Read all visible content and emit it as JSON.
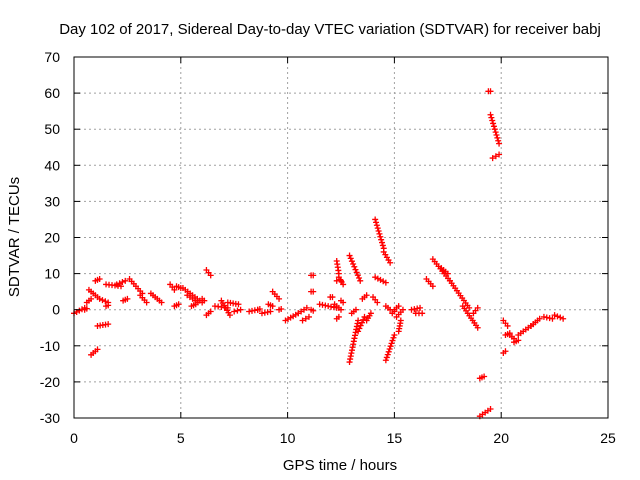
{
  "chart_data": {
    "type": "scatter",
    "title": "Day 102 of 2017, Sidereal Day-to-day VTEC variation (SDTVAR) for receiver babj",
    "xlabel": "GPS time / hours",
    "ylabel": "SDTVAR / TECUs",
    "xlim": [
      0,
      25
    ],
    "ylim": [
      -30,
      70
    ],
    "xticks": [
      0,
      5,
      10,
      15,
      20,
      25
    ],
    "yticks": [
      -30,
      -20,
      -10,
      0,
      10,
      20,
      30,
      40,
      50,
      60,
      70
    ],
    "grid": true,
    "marker": "+",
    "color": "#ff0000",
    "segments": [
      {
        "x0": 0.0,
        "y0": -1.0,
        "x1": 0.5,
        "y1": 0.5
      },
      {
        "x0": 0.5,
        "y0": 0.0,
        "x1": 0.6,
        "y1": 0.3
      },
      {
        "x0": 0.6,
        "y0": 2.0,
        "x1": 0.8,
        "y1": 3.0
      },
      {
        "x0": 0.7,
        "y0": 5.5,
        "x1": 1.1,
        "y1": 3.5
      },
      {
        "x0": 0.8,
        "y0": -12.5,
        "x1": 1.1,
        "y1": -11.0
      },
      {
        "x0": 1.0,
        "y0": 8.0,
        "x1": 1.2,
        "y1": 8.5
      },
      {
        "x0": 1.1,
        "y0": -4.5,
        "x1": 1.6,
        "y1": -4.0
      },
      {
        "x0": 1.2,
        "y0": 3.0,
        "x1": 1.6,
        "y1": 2.0
      },
      {
        "x0": 1.5,
        "y0": 1.0,
        "x1": 1.6,
        "y1": 1.2
      },
      {
        "x0": 1.5,
        "y0": 7.0,
        "x1": 2.2,
        "y1": 6.5
      },
      {
        "x0": 2.0,
        "y0": 7.0,
        "x1": 2.4,
        "y1": 8.0
      },
      {
        "x0": 2.3,
        "y0": 2.5,
        "x1": 2.5,
        "y1": 3.0
      },
      {
        "x0": 2.6,
        "y0": 8.5,
        "x1": 3.2,
        "y1": 4.5
      },
      {
        "x0": 3.1,
        "y0": 4.0,
        "x1": 3.4,
        "y1": 2.0
      },
      {
        "x0": 3.6,
        "y0": 4.5,
        "x1": 4.1,
        "y1": 2.0
      },
      {
        "x0": 4.5,
        "y0": 7.0,
        "x1": 4.7,
        "y1": 5.5
      },
      {
        "x0": 4.7,
        "y0": 1.0,
        "x1": 4.9,
        "y1": 1.5
      },
      {
        "x0": 4.8,
        "y0": 6.5,
        "x1": 5.0,
        "y1": 6.0
      },
      {
        "x0": 5.1,
        "y0": 6.0,
        "x1": 6.0,
        "y1": 2.0
      },
      {
        "x0": 5.3,
        "y0": 4.0,
        "x1": 5.8,
        "y1": 2.0
      },
      {
        "x0": 5.5,
        "y0": 1.0,
        "x1": 5.7,
        "y1": 1.5
      },
      {
        "x0": 6.0,
        "y0": 3.0,
        "x1": 6.1,
        "y1": 2.5
      },
      {
        "x0": 6.2,
        "y0": 11.0,
        "x1": 6.4,
        "y1": 9.5
      },
      {
        "x0": 6.2,
        "y0": -1.5,
        "x1": 6.4,
        "y1": -0.5
      },
      {
        "x0": 6.6,
        "y0": 1.0,
        "x1": 7.2,
        "y1": 0.5
      },
      {
        "x0": 6.9,
        "y0": 2.5,
        "x1": 7.3,
        "y1": -1.5
      },
      {
        "x0": 7.2,
        "y0": 2.0,
        "x1": 7.7,
        "y1": 1.5
      },
      {
        "x0": 7.5,
        "y0": -0.5,
        "x1": 7.8,
        "y1": 0.0
      },
      {
        "x0": 8.2,
        "y0": -0.5,
        "x1": 8.6,
        "y1": 0.0
      },
      {
        "x0": 8.6,
        "y0": 0.0,
        "x1": 8.7,
        "y1": 0.2
      },
      {
        "x0": 8.8,
        "y0": -1.0,
        "x1": 9.2,
        "y1": -0.5
      },
      {
        "x0": 9.1,
        "y0": 1.5,
        "x1": 9.3,
        "y1": 1.0
      },
      {
        "x0": 9.3,
        "y0": 5.0,
        "x1": 9.6,
        "y1": 3.0
      },
      {
        "x0": 9.6,
        "y0": 0.0,
        "x1": 9.7,
        "y1": 0.2
      },
      {
        "x0": 9.9,
        "y0": -3.0,
        "x1": 10.5,
        "y1": -1.0
      },
      {
        "x0": 10.5,
        "y0": -1.0,
        "x1": 10.9,
        "y1": 0.5
      },
      {
        "x0": 10.7,
        "y0": -3.0,
        "x1": 11.0,
        "y1": -2.0
      },
      {
        "x0": 11.1,
        "y0": 9.5,
        "x1": 11.2,
        "y1": 9.5
      },
      {
        "x0": 11.1,
        "y0": 5.0,
        "x1": 11.2,
        "y1": 5.0
      },
      {
        "x0": 11.1,
        "y0": 0.0,
        "x1": 11.2,
        "y1": -0.3
      },
      {
        "x0": 11.5,
        "y0": 1.5,
        "x1": 12.3,
        "y1": 0.5
      },
      {
        "x0": 12.0,
        "y0": 3.5,
        "x1": 12.1,
        "y1": 3.5
      },
      {
        "x0": 12.2,
        "y0": 1.5,
        "x1": 12.5,
        "y1": 0.0
      },
      {
        "x0": 12.3,
        "y0": 13.5,
        "x1": 12.4,
        "y1": 10.0
      },
      {
        "x0": 12.3,
        "y0": 8.0,
        "x1": 12.5,
        "y1": 8.0
      },
      {
        "x0": 12.3,
        "y0": -2.5,
        "x1": 12.4,
        "y1": -2.0
      },
      {
        "x0": 12.4,
        "y0": 9.0,
        "x1": 12.6,
        "y1": 7.0
      },
      {
        "x0": 12.5,
        "y0": 2.5,
        "x1": 12.6,
        "y1": 2.0
      },
      {
        "x0": 12.9,
        "y0": 15.0,
        "x1": 13.4,
        "y1": 8.0
      },
      {
        "x0": 12.9,
        "y0": -14.5,
        "x1": 13.3,
        "y1": -3.0
      },
      {
        "x0": 13.0,
        "y0": -1.0,
        "x1": 13.2,
        "y1": 0.0
      },
      {
        "x0": 13.3,
        "y0": -6.0,
        "x1": 13.6,
        "y1": -2.0
      },
      {
        "x0": 13.5,
        "y0": 3.0,
        "x1": 13.7,
        "y1": 4.0
      },
      {
        "x0": 13.7,
        "y0": -3.0,
        "x1": 13.9,
        "y1": -1.0
      },
      {
        "x0": 14.0,
        "y0": 3.5,
        "x1": 14.2,
        "y1": 2.0
      },
      {
        "x0": 14.1,
        "y0": 25.0,
        "x1": 14.5,
        "y1": 17.0
      },
      {
        "x0": 14.1,
        "y0": 9.0,
        "x1": 14.6,
        "y1": 7.5
      },
      {
        "x0": 14.5,
        "y0": 16.0,
        "x1": 14.8,
        "y1": 13.0
      },
      {
        "x0": 14.6,
        "y0": 1.0,
        "x1": 14.8,
        "y1": 0.0
      },
      {
        "x0": 14.6,
        "y0": -14.0,
        "x1": 15.0,
        "y1": -7.0
      },
      {
        "x0": 14.9,
        "y0": -1.0,
        "x1": 15.0,
        "y1": -0.5
      },
      {
        "x0": 15.0,
        "y0": 0.0,
        "x1": 15.2,
        "y1": 1.0
      },
      {
        "x0": 15.1,
        "y0": -2.0,
        "x1": 15.4,
        "y1": 0.0
      },
      {
        "x0": 15.2,
        "y0": -6.0,
        "x1": 15.3,
        "y1": -3.0
      },
      {
        "x0": 15.8,
        "y0": 0.0,
        "x1": 16.2,
        "y1": 0.5
      },
      {
        "x0": 16.0,
        "y0": -1.0,
        "x1": 16.3,
        "y1": -1.0
      },
      {
        "x0": 16.5,
        "y0": 8.5,
        "x1": 16.8,
        "y1": 6.5
      },
      {
        "x0": 16.8,
        "y0": 14.0,
        "x1": 17.6,
        "y1": 8.0
      },
      {
        "x0": 17.2,
        "y0": 11.5,
        "x1": 17.5,
        "y1": 10.0
      },
      {
        "x0": 17.6,
        "y0": 8.0,
        "x1": 18.5,
        "y1": 0.5
      },
      {
        "x0": 18.2,
        "y0": 1.0,
        "x1": 18.9,
        "y1": -5.0
      },
      {
        "x0": 18.7,
        "y0": -1.0,
        "x1": 18.9,
        "y1": 0.5
      },
      {
        "x0": 19.0,
        "y0": -19.0,
        "x1": 19.2,
        "y1": -18.5
      },
      {
        "x0": 19.0,
        "y0": -29.5,
        "x1": 19.5,
        "y1": -27.5
      },
      {
        "x0": 19.4,
        "y0": 60.5,
        "x1": 19.5,
        "y1": 60.5
      },
      {
        "x0": 19.5,
        "y0": 54.0,
        "x1": 19.9,
        "y1": 46.0
      },
      {
        "x0": 19.6,
        "y0": 42.0,
        "x1": 19.9,
        "y1": 43.0
      },
      {
        "x0": 20.1,
        "y0": -3.0,
        "x1": 20.3,
        "y1": -4.5
      },
      {
        "x0": 20.1,
        "y0": -12.0,
        "x1": 20.2,
        "y1": -11.5
      },
      {
        "x0": 20.2,
        "y0": -7.0,
        "x1": 20.4,
        "y1": -6.5
      },
      {
        "x0": 20.4,
        "y0": -7.0,
        "x1": 20.6,
        "y1": -8.0
      },
      {
        "x0": 20.6,
        "y0": -9.0,
        "x1": 20.8,
        "y1": -8.5
      },
      {
        "x0": 20.8,
        "y0": -7.0,
        "x1": 21.5,
        "y1": -4.0
      },
      {
        "x0": 21.4,
        "y0": -4.5,
        "x1": 21.8,
        "y1": -2.5
      },
      {
        "x0": 22.0,
        "y0": -2.0,
        "x1": 22.4,
        "y1": -2.5
      },
      {
        "x0": 22.5,
        "y0": -1.5,
        "x1": 22.9,
        "y1": -2.5
      }
    ]
  }
}
